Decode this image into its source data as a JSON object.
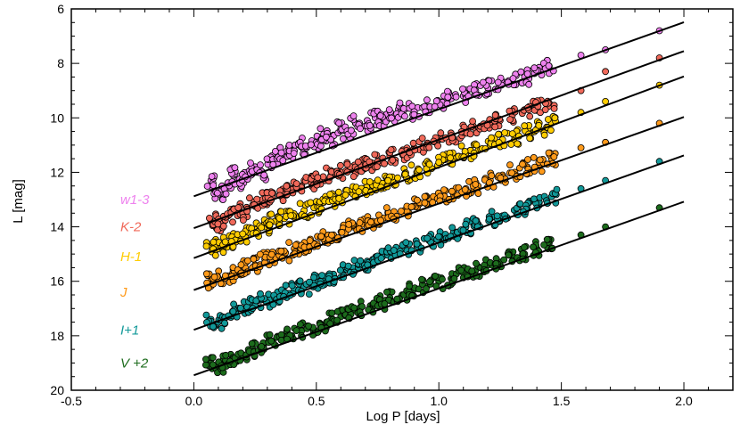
{
  "chart_data": {
    "type": "scatter",
    "xlabel": "Log P [days]",
    "ylabel": "L [mag]",
    "xlim": [
      -0.5,
      2.2
    ],
    "ylim": [
      20,
      6
    ],
    "y_inverted": true,
    "x_ticks": [
      -0.5,
      0.0,
      0.5,
      1.0,
      1.5,
      2.0
    ],
    "x_tick_labels": [
      "-0.5",
      "0.0",
      "0.5",
      "1.0",
      "1.5",
      "2.0"
    ],
    "y_ticks": [
      6,
      8,
      10,
      12,
      14,
      16,
      18,
      20
    ],
    "y_tick_labels": [
      "6",
      "8",
      "10",
      "12",
      "14",
      "16",
      "18",
      "20"
    ],
    "grid": false,
    "legend": "inline-left",
    "series": [
      {
        "name": "w1-3",
        "color": "#ee82ee",
        "fit": {
          "x": [
            0.0,
            2.0
          ],
          "y": [
            12.88,
            6.49
          ]
        },
        "points": [
          [
            0.07,
            12.3
          ],
          [
            0.1,
            12.8
          ],
          [
            0.13,
            12.6
          ],
          [
            0.16,
            12.1
          ],
          [
            0.19,
            12.4
          ],
          [
            0.22,
            12.0
          ],
          [
            0.25,
            11.8
          ],
          [
            0.28,
            12.0
          ],
          [
            0.31,
            11.6
          ],
          [
            0.34,
            11.5
          ],
          [
            0.37,
            11.3
          ],
          [
            0.4,
            11.2
          ],
          [
            0.43,
            11.0
          ],
          [
            0.46,
            11.1
          ],
          [
            0.5,
            10.9
          ],
          [
            0.53,
            10.6
          ],
          [
            0.56,
            10.8
          ],
          [
            0.6,
            10.4
          ],
          [
            0.63,
            10.5
          ],
          [
            0.66,
            10.2
          ],
          [
            0.7,
            10.3
          ],
          [
            0.74,
            10.0
          ],
          [
            0.78,
            10.1
          ],
          [
            0.82,
            9.9
          ],
          [
            0.86,
            9.7
          ],
          [
            0.9,
            9.8
          ],
          [
            0.95,
            9.6
          ],
          [
            1.0,
            9.4
          ],
          [
            1.05,
            9.3
          ],
          [
            1.1,
            9.2
          ],
          [
            1.15,
            9.0
          ],
          [
            1.2,
            8.9
          ],
          [
            1.25,
            8.8
          ],
          [
            1.3,
            8.6
          ],
          [
            1.35,
            8.5
          ],
          [
            1.4,
            8.3
          ],
          [
            1.45,
            8.1
          ],
          [
            1.58,
            7.7
          ],
          [
            1.68,
            7.5
          ],
          [
            1.9,
            6.8
          ]
        ]
      },
      {
        "name": "K-2",
        "color": "#f0695a",
        "fit": {
          "x": [
            0.0,
            2.0
          ],
          "y": [
            14.05,
            7.55
          ]
        },
        "points": [
          [
            0.07,
            13.8
          ],
          [
            0.1,
            13.9
          ],
          [
            0.14,
            13.6
          ],
          [
            0.17,
            13.4
          ],
          [
            0.2,
            13.5
          ],
          [
            0.24,
            13.2
          ],
          [
            0.28,
            13.0
          ],
          [
            0.32,
            12.9
          ],
          [
            0.36,
            12.8
          ],
          [
            0.4,
            12.6
          ],
          [
            0.44,
            12.5
          ],
          [
            0.48,
            12.4
          ],
          [
            0.52,
            12.3
          ],
          [
            0.56,
            12.1
          ],
          [
            0.6,
            12.0
          ],
          [
            0.64,
            11.9
          ],
          [
            0.68,
            11.8
          ],
          [
            0.72,
            11.7
          ],
          [
            0.76,
            11.6
          ],
          [
            0.8,
            11.4
          ],
          [
            0.85,
            11.3
          ],
          [
            0.9,
            11.1
          ],
          [
            0.95,
            11.0
          ],
          [
            1.0,
            10.8
          ],
          [
            1.05,
            10.7
          ],
          [
            1.1,
            10.5
          ],
          [
            1.15,
            10.4
          ],
          [
            1.2,
            10.2
          ],
          [
            1.25,
            10.1
          ],
          [
            1.3,
            9.9
          ],
          [
            1.35,
            9.7
          ],
          [
            1.4,
            9.6
          ],
          [
            1.45,
            9.5
          ],
          [
            1.58,
            9.0
          ],
          [
            1.68,
            8.3
          ],
          [
            1.9,
            7.8
          ]
        ]
      },
      {
        "name": "H-1",
        "color": "#ffcc00",
        "fit": {
          "x": [
            0.0,
            2.0
          ],
          "y": [
            15.15,
            8.48
          ]
        },
        "points": [
          [
            0.07,
            14.7
          ],
          [
            0.1,
            14.8
          ],
          [
            0.14,
            14.6
          ],
          [
            0.17,
            14.5
          ],
          [
            0.21,
            14.3
          ],
          [
            0.25,
            14.1
          ],
          [
            0.29,
            14.0
          ],
          [
            0.33,
            13.8
          ],
          [
            0.37,
            13.7
          ],
          [
            0.41,
            13.6
          ],
          [
            0.45,
            13.4
          ],
          [
            0.49,
            13.3
          ],
          [
            0.53,
            13.1
          ],
          [
            0.57,
            13.0
          ],
          [
            0.61,
            12.9
          ],
          [
            0.65,
            12.8
          ],
          [
            0.69,
            12.6
          ],
          [
            0.73,
            12.5
          ],
          [
            0.77,
            12.4
          ],
          [
            0.81,
            12.3
          ],
          [
            0.86,
            12.1
          ],
          [
            0.91,
            12.0
          ],
          [
            0.96,
            11.8
          ],
          [
            1.01,
            11.6
          ],
          [
            1.06,
            11.5
          ],
          [
            1.11,
            11.3
          ],
          [
            1.16,
            11.2
          ],
          [
            1.21,
            11.0
          ],
          [
            1.26,
            10.8
          ],
          [
            1.31,
            10.7
          ],
          [
            1.36,
            10.5
          ],
          [
            1.41,
            10.4
          ],
          [
            1.46,
            10.2
          ],
          [
            1.58,
            9.8
          ],
          [
            1.68,
            9.4
          ],
          [
            1.9,
            8.8
          ]
        ]
      },
      {
        "name": "J",
        "color": "#ff9a1a",
        "fit": {
          "x": [
            0.0,
            2.0
          ],
          "y": [
            16.32,
            9.97
          ]
        },
        "points": [
          [
            0.07,
            16.0
          ],
          [
            0.1,
            15.9
          ],
          [
            0.14,
            15.8
          ],
          [
            0.17,
            15.7
          ],
          [
            0.21,
            15.5
          ],
          [
            0.25,
            15.4
          ],
          [
            0.29,
            15.2
          ],
          [
            0.33,
            15.1
          ],
          [
            0.37,
            15.0
          ],
          [
            0.41,
            14.8
          ],
          [
            0.45,
            14.7
          ],
          [
            0.49,
            14.6
          ],
          [
            0.53,
            14.4
          ],
          [
            0.57,
            14.3
          ],
          [
            0.61,
            14.2
          ],
          [
            0.65,
            14.0
          ],
          [
            0.69,
            13.9
          ],
          [
            0.73,
            13.8
          ],
          [
            0.77,
            13.7
          ],
          [
            0.81,
            13.5
          ],
          [
            0.86,
            13.4
          ],
          [
            0.91,
            13.2
          ],
          [
            0.96,
            13.1
          ],
          [
            1.01,
            12.9
          ],
          [
            1.06,
            12.8
          ],
          [
            1.11,
            12.6
          ],
          [
            1.16,
            12.5
          ],
          [
            1.21,
            12.3
          ],
          [
            1.26,
            12.1
          ],
          [
            1.31,
            12.0
          ],
          [
            1.36,
            11.8
          ],
          [
            1.41,
            11.7
          ],
          [
            1.46,
            11.5
          ],
          [
            1.58,
            11.1
          ],
          [
            1.68,
            10.9
          ],
          [
            1.9,
            10.2
          ]
        ]
      },
      {
        "name": "I+1",
        "color": "#119999",
        "fit": {
          "x": [
            0.0,
            2.0
          ],
          "y": [
            17.78,
            11.38
          ]
        },
        "points": [
          [
            0.07,
            17.4
          ],
          [
            0.1,
            17.5
          ],
          [
            0.14,
            17.3
          ],
          [
            0.17,
            17.1
          ],
          [
            0.21,
            17.0
          ],
          [
            0.25,
            16.9
          ],
          [
            0.29,
            16.7
          ],
          [
            0.33,
            16.6
          ],
          [
            0.37,
            16.4
          ],
          [
            0.41,
            16.3
          ],
          [
            0.45,
            16.2
          ],
          [
            0.49,
            16.0
          ],
          [
            0.53,
            15.9
          ],
          [
            0.57,
            15.8
          ],
          [
            0.61,
            15.6
          ],
          [
            0.65,
            15.5
          ],
          [
            0.69,
            15.4
          ],
          [
            0.73,
            15.2
          ],
          [
            0.77,
            15.1
          ],
          [
            0.81,
            15.0
          ],
          [
            0.86,
            14.8
          ],
          [
            0.91,
            14.7
          ],
          [
            0.96,
            14.5
          ],
          [
            1.01,
            14.4
          ],
          [
            1.06,
            14.2
          ],
          [
            1.11,
            14.0
          ],
          [
            1.16,
            13.9
          ],
          [
            1.21,
            13.7
          ],
          [
            1.26,
            13.6
          ],
          [
            1.31,
            13.4
          ],
          [
            1.36,
            13.3
          ],
          [
            1.41,
            13.1
          ],
          [
            1.46,
            12.9
          ],
          [
            1.58,
            12.6
          ],
          [
            1.68,
            12.3
          ],
          [
            1.9,
            11.6
          ]
        ]
      },
      {
        "name": "V +2",
        "color": "#1c6b1c",
        "fit": {
          "x": [
            0.0,
            2.0
          ],
          "y": [
            19.45,
            13.08
          ]
        },
        "points": [
          [
            0.07,
            19.0
          ],
          [
            0.1,
            19.1
          ],
          [
            0.13,
            18.9
          ],
          [
            0.16,
            18.8
          ],
          [
            0.2,
            18.7
          ],
          [
            0.24,
            18.5
          ],
          [
            0.28,
            18.4
          ],
          [
            0.32,
            18.2
          ],
          [
            0.36,
            18.1
          ],
          [
            0.4,
            18.0
          ],
          [
            0.44,
            17.8
          ],
          [
            0.48,
            17.7
          ],
          [
            0.52,
            17.6
          ],
          [
            0.56,
            17.4
          ],
          [
            0.6,
            17.3
          ],
          [
            0.64,
            17.2
          ],
          [
            0.68,
            17.0
          ],
          [
            0.72,
            16.9
          ],
          [
            0.76,
            16.8
          ],
          [
            0.8,
            16.6
          ],
          [
            0.85,
            16.5
          ],
          [
            0.9,
            16.3
          ],
          [
            0.95,
            16.2
          ],
          [
            1.0,
            16.0
          ],
          [
            1.05,
            15.9
          ],
          [
            1.1,
            15.7
          ],
          [
            1.15,
            15.6
          ],
          [
            1.2,
            15.4
          ],
          [
            1.25,
            15.3
          ],
          [
            1.3,
            15.1
          ],
          [
            1.35,
            15.0
          ],
          [
            1.4,
            14.8
          ],
          [
            1.45,
            14.6
          ],
          [
            1.58,
            14.3
          ],
          [
            1.68,
            14.0
          ],
          [
            1.9,
            13.3
          ]
        ]
      }
    ],
    "annotations": [
      {
        "text": "w1-3",
        "x": -0.3,
        "y": 13.0,
        "color": "#ee82ee"
      },
      {
        "text": "K-2",
        "x": -0.3,
        "y": 14.0,
        "color": "#f0695a"
      },
      {
        "text": "H-1",
        "x": -0.3,
        "y": 15.1,
        "color": "#ffcc00"
      },
      {
        "text": "J",
        "x": -0.3,
        "y": 16.4,
        "color": "#ff9a1a"
      },
      {
        "text": "I+1",
        "x": -0.3,
        "y": 17.8,
        "color": "#119999"
      },
      {
        "text": "V +2",
        "x": -0.3,
        "y": 19.0,
        "color": "#1c6b1c"
      }
    ]
  }
}
